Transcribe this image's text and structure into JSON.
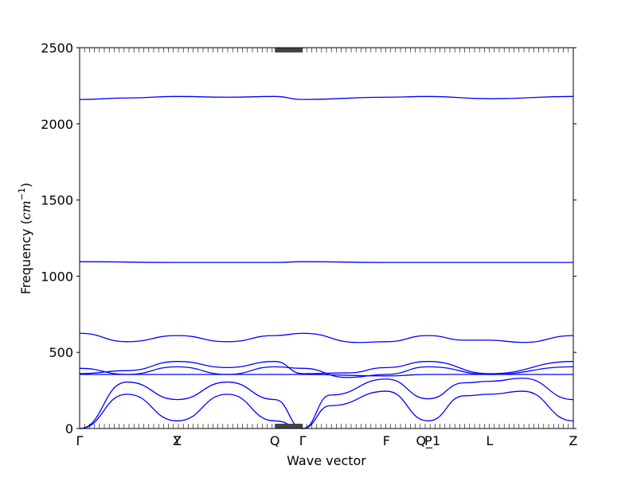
{
  "chart_data": {
    "type": "line",
    "title": "",
    "xlabel": "Wave vector",
    "ylabel": "Frequency",
    "ylabel_unit": "cm",
    "ylabel_unit_exp": "−1",
    "ylim": [
      0,
      2500
    ],
    "yticks": [
      0,
      500,
      1000,
      1500,
      2000,
      2500
    ],
    "xlim": [
      0,
      8.85
    ],
    "high_symmetry_points": [
      {
        "label": "Γ",
        "x": 0
      },
      {
        "label": "Y",
        "x": 1.75
      },
      {
        "label": "Z",
        "x": 1.75
      },
      {
        "label": "Q",
        "x": 3.5
      },
      {
        "label": "Γ",
        "x": 4.0
      },
      {
        "label": "F",
        "x": 5.5
      },
      {
        "label": "P",
        "x": 6.25
      },
      {
        "label": "Q_1",
        "x": 6.25
      },
      {
        "label": "L",
        "x": 7.35
      },
      {
        "label": "Z",
        "x": 8.85
      }
    ],
    "series": [
      {
        "x": [
          0,
          0.85,
          1.75,
          2.65,
          3.5,
          4.0,
          4.5,
          5.5,
          6.25,
          6.9,
          7.35,
          7.95,
          8.85
        ],
        "values": [
          0,
          225,
          50,
          225,
          50,
          0,
          150,
          245,
          50,
          215,
          225,
          245,
          50
        ]
      },
      {
        "x": [
          0,
          0.85,
          1.75,
          2.65,
          3.5,
          4.0,
          4.5,
          5.5,
          6.25,
          6.9,
          7.35,
          7.95,
          8.85
        ],
        "values": [
          0,
          305,
          190,
          305,
          190,
          0,
          220,
          325,
          195,
          300,
          310,
          330,
          190
        ]
      },
      {
        "x": [
          0,
          0.85,
          1.75,
          2.65,
          3.5,
          4.0,
          5.5,
          6.25,
          7.35,
          8.85
        ],
        "values": [
          355,
          355,
          355,
          355,
          355,
          355,
          345,
          355,
          355,
          355
        ]
      },
      {
        "x": [
          0,
          0.85,
          1.75,
          2.65,
          3.5,
          4.0,
          4.8,
          5.5,
          6.25,
          7.35,
          8.85
        ],
        "values": [
          395,
          355,
          405,
          355,
          405,
          395,
          335,
          355,
          405,
          355,
          405
        ]
      },
      {
        "x": [
          0,
          0.85,
          1.75,
          2.65,
          3.5,
          4.0,
          4.8,
          5.5,
          6.25,
          7.35,
          8.85
        ],
        "values": [
          360,
          380,
          440,
          400,
          440,
          360,
          365,
          400,
          440,
          360,
          440
        ]
      },
      {
        "x": [
          0,
          0.85,
          1.75,
          2.65,
          3.5,
          4.0,
          5.0,
          5.5,
          6.25,
          6.9,
          7.35,
          7.95,
          8.85
        ],
        "values": [
          625,
          570,
          610,
          570,
          610,
          625,
          565,
          570,
          610,
          580,
          580,
          565,
          610
        ]
      },
      {
        "x": [
          0,
          1.75,
          3.5,
          4.0,
          5.5,
          6.25,
          7.35,
          8.85
        ],
        "values": [
          1095,
          1090,
          1090,
          1095,
          1090,
          1090,
          1090,
          1090
        ]
      },
      {
        "x": [
          0,
          0.85,
          1.75,
          2.65,
          3.5,
          4.0,
          5.5,
          6.25,
          7.35,
          8.85
        ],
        "values": [
          2160,
          2170,
          2180,
          2175,
          2180,
          2160,
          2175,
          2180,
          2165,
          2180
        ]
      }
    ]
  }
}
